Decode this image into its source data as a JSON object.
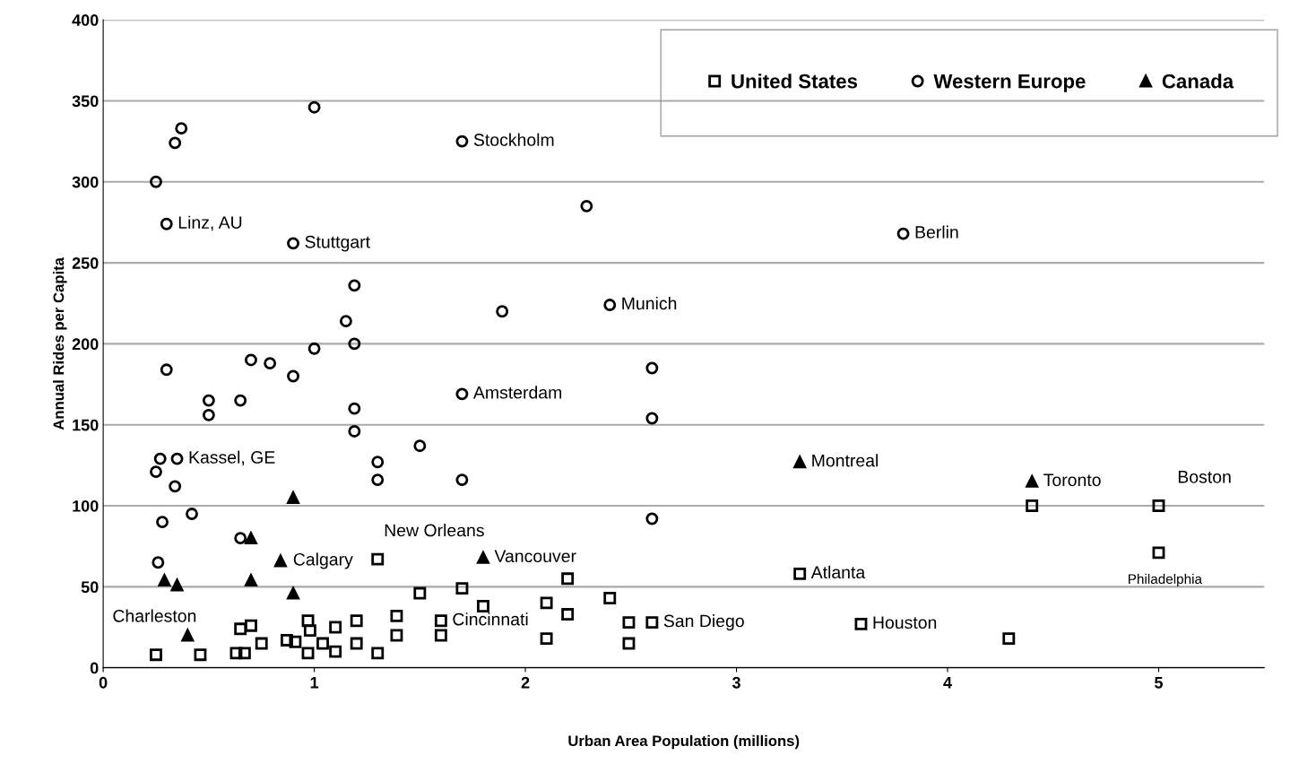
{
  "chart_data": {
    "type": "scatter",
    "xlabel": "Urban Area Population (millions)",
    "ylabel": "Annual Rides per Capita",
    "xlim": [
      0,
      5.5
    ],
    "xticks": [
      0,
      1,
      2,
      3,
      4,
      5
    ],
    "ylim": [
      0,
      400
    ],
    "yticks": [
      0,
      50,
      100,
      150,
      200,
      250,
      300,
      350,
      400
    ],
    "grid": "y",
    "legend": "top right",
    "series": [
      {
        "name": "United States",
        "color": "#000000",
        "marker": "square",
        "x": [
          0.25,
          0.46,
          0.63,
          0.67,
          0.65,
          0.7,
          0.75,
          0.87,
          0.91,
          0.97,
          0.98,
          0.97,
          1.04,
          1.1,
          1.1,
          1.2,
          1.2,
          1.3,
          1.39,
          1.39,
          1.5,
          1.6,
          1.6,
          1.7,
          1.8,
          1.3,
          2.1,
          2.2,
          2.2,
          2.1,
          2.4,
          2.49,
          2.49,
          2.6,
          3.3,
          3.59,
          4.29,
          4.4,
          5.0,
          5.0
        ],
        "values": [
          8,
          8,
          9,
          9,
          24,
          26,
          15,
          17,
          16,
          29,
          23,
          9,
          15,
          25,
          10,
          29,
          15,
          9,
          32,
          20,
          46,
          29,
          20,
          49,
          38,
          67,
          40,
          55,
          33,
          18,
          43,
          28,
          15,
          28,
          58,
          27,
          18,
          100,
          100,
          71
        ]
      },
      {
        "name": "Western Europe",
        "color": "#000000",
        "marker": "circle",
        "x": [
          0.25,
          0.34,
          0.37,
          1.0,
          1.7,
          2.29,
          0.3,
          0.9,
          3.79,
          1.19,
          1.15,
          1.19,
          1.0,
          1.89,
          2.4,
          0.3,
          0.7,
          0.79,
          0.9,
          0.5,
          0.5,
          0.65,
          1.19,
          1.19,
          1.7,
          2.6,
          2.6,
          1.5,
          1.3,
          1.3,
          1.7,
          0.27,
          0.35,
          0.25,
          0.34,
          0.42,
          0.28,
          2.6,
          0.26,
          0.65
        ],
        "values": [
          300,
          324,
          333,
          346,
          325,
          285,
          274,
          262,
          268,
          236,
          214,
          200,
          197,
          220,
          224,
          184,
          190,
          188,
          180,
          165,
          156,
          165,
          160,
          146,
          169,
          185,
          154,
          137,
          127,
          116,
          116,
          129,
          129,
          121,
          112,
          95,
          90,
          92,
          65,
          80
        ]
      },
      {
        "name": "Canada",
        "color": "#000000",
        "marker": "triangle",
        "x": [
          0.9,
          0.7,
          0.84,
          0.29,
          0.35,
          0.9,
          0.4,
          1.8,
          3.3,
          4.4,
          0.7
        ],
        "values": [
          105,
          80,
          66,
          54,
          51,
          46,
          20,
          68,
          127,
          115,
          54
        ]
      }
    ],
    "annotations": [
      {
        "text": "Stockholm",
        "x": 1.7,
        "y": 325
      },
      {
        "text": "Linz, AU",
        "x": 0.3,
        "y": 274
      },
      {
        "text": "Stuttgart",
        "x": 0.9,
        "y": 262
      },
      {
        "text": "Berlin",
        "x": 3.79,
        "y": 268
      },
      {
        "text": "Munich",
        "x": 2.4,
        "y": 224
      },
      {
        "text": "Amsterdam",
        "x": 1.7,
        "y": 169
      },
      {
        "text": "Kassel, GE",
        "x": 0.35,
        "y": 129
      },
      {
        "text": "Montreal",
        "x": 3.3,
        "y": 127
      },
      {
        "text": "Toronto",
        "x": 4.4,
        "y": 115
      },
      {
        "text": "Boston",
        "x": 5.0,
        "y": 100
      },
      {
        "text": "Philadelphia",
        "x": 5.0,
        "y": 71
      },
      {
        "text": "New Orleans",
        "x": 1.3,
        "y": 67
      },
      {
        "text": "Vancouver",
        "x": 1.8,
        "y": 68
      },
      {
        "text": "Calgary",
        "x": 0.84,
        "y": 66
      },
      {
        "text": "Charleston",
        "x": 0.25,
        "y": 8
      },
      {
        "text": "Cincinnati",
        "x": 1.6,
        "y": 29
      },
      {
        "text": "San Diego",
        "x": 2.6,
        "y": 28
      },
      {
        "text": "Atlanta",
        "x": 3.3,
        "y": 58
      },
      {
        "text": "Houston",
        "x": 3.59,
        "y": 27
      }
    ]
  }
}
